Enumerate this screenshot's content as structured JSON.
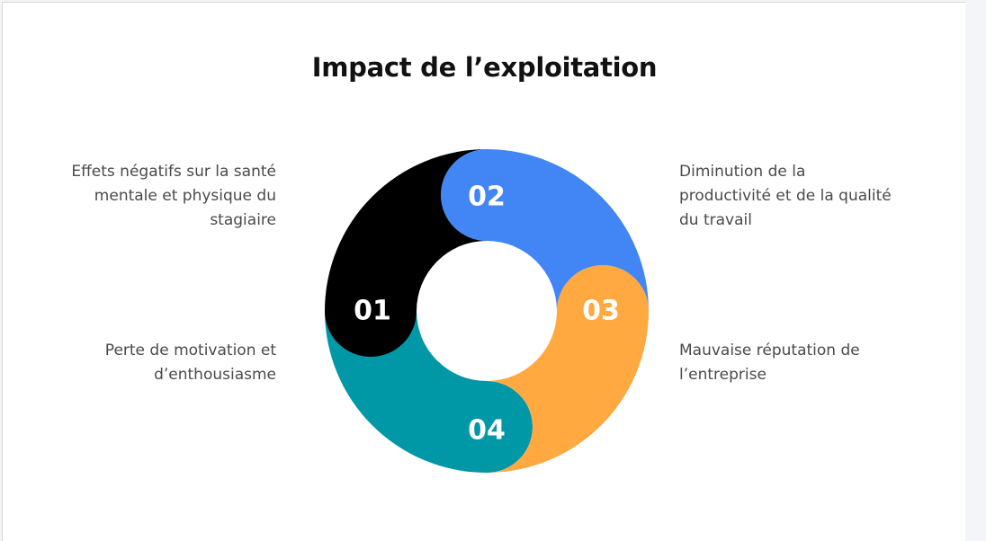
{
  "title": "Impact de l’exploitation",
  "segments": [
    {
      "number": "01",
      "label": "Effets négatifs sur la santé mentale et physique du stagiaire",
      "color": "#000000"
    },
    {
      "number": "02",
      "label": "Diminution de la productivité et de la qualité du travail",
      "color": "#4285f4"
    },
    {
      "number": "03",
      "label": "Mauvaise réputation de l’entreprise",
      "color": "#ffa940"
    },
    {
      "number": "04",
      "label": "Perte de motivation et d’enthousiasme",
      "color": "#0097a7"
    }
  ]
}
